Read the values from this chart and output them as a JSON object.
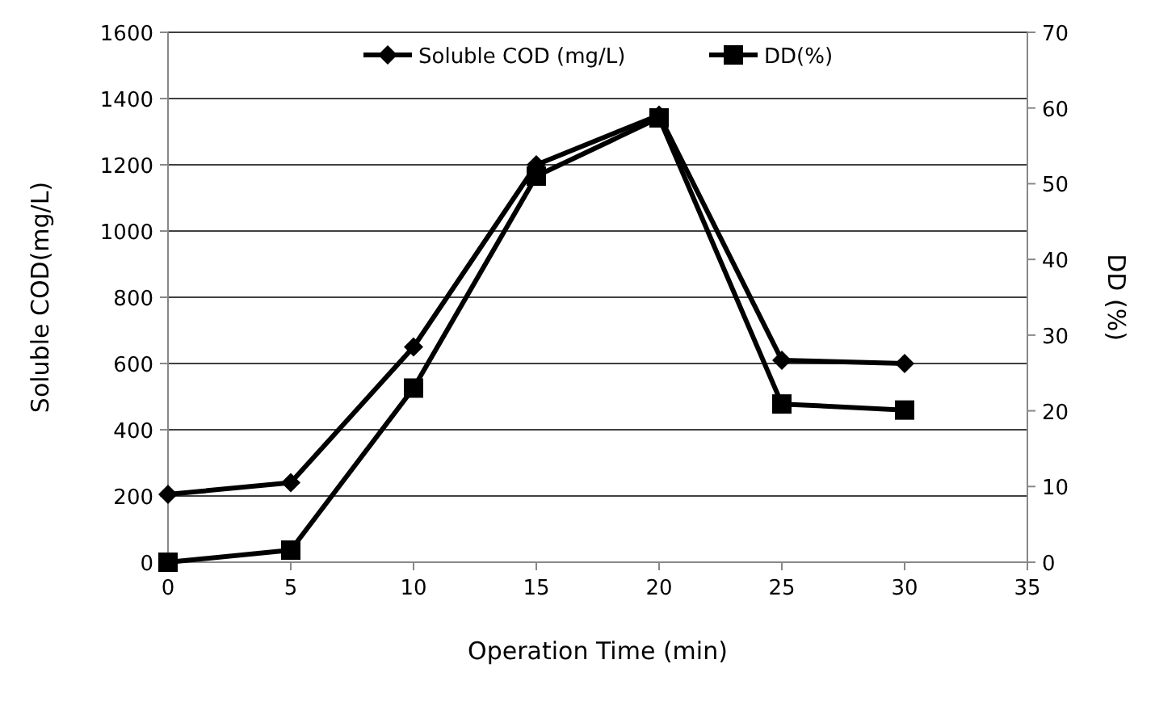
{
  "chart_data": {
    "type": "line",
    "xlabel": "Operation Time (min)",
    "ylabel": "Soluble COD(mg/L)",
    "y2label": "DD (%)",
    "x": [
      0,
      5,
      10,
      15,
      20,
      25,
      30
    ],
    "xlim": [
      0,
      35
    ],
    "xticks": [
      0,
      5,
      10,
      15,
      20,
      25,
      30,
      35
    ],
    "ylim": [
      0,
      1600
    ],
    "yticks": [
      0,
      200,
      400,
      600,
      800,
      1000,
      1200,
      1400,
      1600
    ],
    "y2lim": [
      0,
      70
    ],
    "y2ticks": [
      0,
      10,
      20,
      30,
      40,
      50,
      60,
      70
    ],
    "grid": "y",
    "legend": "top",
    "series": [
      {
        "name": "Soluble COD (mg/L)",
        "color": "#000000",
        "marker": "diamond",
        "values": [
          205,
          240,
          650,
          1200,
          1350,
          610,
          600
        ]
      },
      {
        "name": "DD(%)",
        "color": "#000000",
        "marker": "square",
        "axis": "y2",
        "values": [
          0,
          1.6,
          23,
          51,
          58.7,
          20.9,
          20.1
        ]
      }
    ]
  }
}
